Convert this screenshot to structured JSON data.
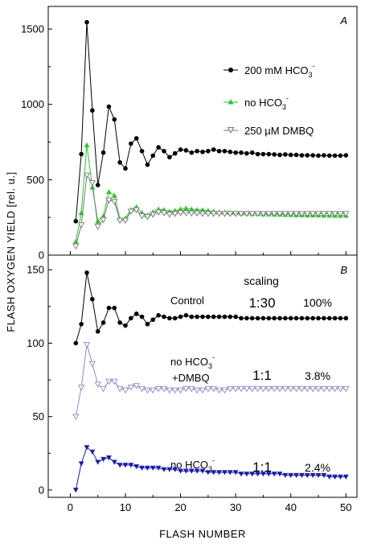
{
  "chart_data": [
    {
      "panel": "A",
      "type": "line",
      "xlabel": "FLASH NUMBER",
      "ylabel": "FLASH OXYGEN YIELD [rel. u.]",
      "xlim": [
        -4,
        52
      ],
      "ylim": [
        0,
        1650
      ],
      "x_ticks": [
        "0",
        "10",
        "20",
        "30",
        "40",
        "50"
      ],
      "y_ticks": [
        "0",
        "500",
        "1000",
        "1500"
      ],
      "legend_placement": "top-right",
      "series": [
        {
          "name": "200 mM HCO3-",
          "legend_main": "200 mM HCO",
          "legend_sub": "3",
          "legend_sup": "-",
          "color": "#000000",
          "marker": "circle-filled",
          "x": [
            1,
            2,
            3,
            4,
            5,
            6,
            7,
            8,
            9,
            10,
            11,
            12,
            13,
            14,
            15,
            16,
            17,
            18,
            19,
            20,
            21,
            22,
            23,
            24,
            25,
            26,
            27,
            28,
            29,
            30,
            31,
            32,
            33,
            34,
            35,
            36,
            37,
            38,
            39,
            40,
            41,
            42,
            43,
            44,
            45,
            46,
            47,
            48,
            49,
            50
          ],
          "y": [
            225,
            670,
            1545,
            960,
            465,
            680,
            985,
            900,
            615,
            575,
            740,
            775,
            690,
            600,
            660,
            715,
            690,
            650,
            675,
            700,
            695,
            680,
            690,
            685,
            690,
            700,
            690,
            690,
            685,
            680,
            680,
            675,
            680,
            670,
            670,
            670,
            668,
            665,
            668,
            665,
            665,
            662,
            662,
            662,
            660,
            662,
            660,
            660,
            660,
            662
          ]
        },
        {
          "name": "no HCO3-",
          "legend_main": "no HCO",
          "legend_sub": "3",
          "legend_sup": "-",
          "color": "#22cc22",
          "marker": "triangle-up-filled",
          "x": [
            1,
            2,
            3,
            4,
            5,
            6,
            7,
            8,
            9,
            10,
            11,
            12,
            13,
            14,
            15,
            16,
            17,
            18,
            19,
            20,
            21,
            22,
            23,
            24,
            25,
            26,
            27,
            28,
            29,
            30,
            31,
            32,
            33,
            34,
            35,
            36,
            37,
            38,
            39,
            40,
            41,
            42,
            43,
            44,
            45,
            46,
            47,
            48,
            49,
            50
          ],
          "y": [
            90,
            280,
            730,
            450,
            225,
            260,
            420,
            395,
            240,
            245,
            300,
            320,
            280,
            265,
            285,
            305,
            300,
            290,
            295,
            305,
            310,
            305,
            300,
            300,
            295,
            290,
            285,
            285,
            282,
            280,
            278,
            278,
            275,
            275,
            272,
            272,
            270,
            270,
            268,
            268,
            266,
            266,
            265,
            265,
            265,
            264,
            264,
            263,
            263,
            263
          ]
        },
        {
          "name": "250 µM DMBQ",
          "legend_main": "250 µM DMBQ",
          "legend_sub": "",
          "legend_sup": "",
          "color": "#777777",
          "marker": "triangle-down-open",
          "x": [
            1,
            2,
            3,
            4,
            5,
            6,
            7,
            8,
            9,
            10,
            11,
            12,
            13,
            14,
            15,
            16,
            17,
            18,
            19,
            20,
            21,
            22,
            23,
            24,
            25,
            26,
            27,
            28,
            29,
            30,
            31,
            32,
            33,
            34,
            35,
            36,
            37,
            38,
            39,
            40,
            41,
            42,
            43,
            44,
            45,
            46,
            47,
            48,
            49,
            50
          ],
          "y": [
            60,
            200,
            530,
            480,
            190,
            235,
            365,
            355,
            230,
            230,
            290,
            300,
            260,
            255,
            270,
            285,
            280,
            270,
            275,
            280,
            280,
            278,
            278,
            275,
            275,
            275,
            275,
            275,
            275,
            275,
            275,
            275,
            275,
            275,
            275,
            275,
            275,
            275,
            275,
            275,
            275,
            275,
            275,
            275,
            275,
            275,
            275,
            275,
            275,
            275
          ]
        }
      ]
    },
    {
      "panel": "B",
      "type": "line",
      "xlabel": "FLASH NUMBER",
      "ylabel": "FLASH OXYGEN YIELD [rel. u.]",
      "xlim": [
        -4,
        52
      ],
      "ylim": [
        -5,
        160
      ],
      "x_ticks": [
        "0",
        "10",
        "20",
        "30",
        "40",
        "50"
      ],
      "y_ticks": [
        "0",
        "50",
        "100",
        "150"
      ],
      "scaling_header": "scaling",
      "series": [
        {
          "name": "Control",
          "label_main": "Control",
          "label_sub": "",
          "label_sup": "",
          "label_line2": "",
          "ratio": "1:30",
          "percent": "100%",
          "color": "#000000",
          "marker": "circle-filled",
          "x": [
            1,
            2,
            3,
            4,
            5,
            6,
            7,
            8,
            9,
            10,
            11,
            12,
            13,
            14,
            15,
            16,
            17,
            18,
            19,
            20,
            21,
            22,
            23,
            24,
            25,
            26,
            27,
            28,
            29,
            30,
            31,
            32,
            33,
            34,
            35,
            36,
            37,
            38,
            39,
            40,
            41,
            42,
            43,
            44,
            45,
            46,
            47,
            48,
            49,
            50
          ],
          "y": [
            100,
            113,
            148,
            130,
            108,
            114,
            124,
            124,
            114,
            112,
            117,
            120,
            118,
            113,
            116,
            119,
            118,
            117,
            117,
            118,
            119,
            118,
            118,
            118,
            118,
            118,
            118,
            118,
            118,
            118,
            117,
            117,
            117,
            117,
            117,
            117,
            117,
            117,
            117,
            117,
            117,
            117,
            117,
            117,
            117,
            117,
            117,
            117,
            117,
            117
          ]
        },
        {
          "name": "no HCO3- +DMBQ",
          "label_main": "no HCO",
          "label_sub": "3",
          "label_sup": "-",
          "label_line2": "+DMBQ",
          "ratio": "1:1",
          "percent": "3.8%",
          "color": "#8888cc",
          "marker": "triangle-down-open",
          "x": [
            1,
            2,
            3,
            4,
            5,
            6,
            7,
            8,
            9,
            10,
            11,
            12,
            13,
            14,
            15,
            16,
            17,
            18,
            19,
            20,
            21,
            22,
            23,
            24,
            25,
            26,
            27,
            28,
            29,
            30,
            31,
            32,
            33,
            34,
            35,
            36,
            37,
            38,
            39,
            40,
            41,
            42,
            43,
            44,
            45,
            46,
            47,
            48,
            49,
            50
          ],
          "y": [
            50,
            70,
            99,
            86,
            72,
            69,
            74,
            74,
            69,
            68,
            70,
            71,
            69,
            68,
            68,
            69,
            69,
            68,
            68,
            68,
            69,
            69,
            68,
            68,
            69,
            69,
            68,
            68,
            69,
            69,
            69,
            69,
            69,
            69,
            69,
            69,
            69,
            69,
            69,
            69,
            69,
            69,
            69,
            69,
            69,
            69,
            69,
            69,
            69,
            69
          ]
        },
        {
          "name": "no HCO3-",
          "label_main": "no HCO",
          "label_sub": "3",
          "label_sup": "-",
          "label_line2": "",
          "ratio": "1:1",
          "percent": "2.4%",
          "color": "#1a1ab8",
          "marker": "triangle-down-filled",
          "x": [
            1,
            2,
            3,
            4,
            5,
            6,
            7,
            8,
            9,
            10,
            11,
            12,
            13,
            14,
            15,
            16,
            17,
            18,
            19,
            20,
            21,
            22,
            23,
            24,
            25,
            26,
            27,
            28,
            29,
            30,
            31,
            32,
            33,
            34,
            35,
            36,
            37,
            38,
            39,
            40,
            41,
            42,
            43,
            44,
            45,
            46,
            47,
            48,
            49,
            50
          ],
          "y": [
            0,
            18,
            29,
            26,
            19,
            21,
            22,
            19,
            17,
            17,
            17,
            16,
            15,
            15,
            15,
            15,
            14,
            14,
            14,
            13,
            13,
            13,
            13,
            13,
            12,
            12,
            12,
            12,
            12,
            12,
            11,
            11,
            11,
            11,
            11,
            11,
            11,
            11,
            10,
            10,
            10,
            10,
            10,
            10,
            10,
            10,
            9,
            9,
            9,
            9
          ]
        }
      ]
    }
  ]
}
